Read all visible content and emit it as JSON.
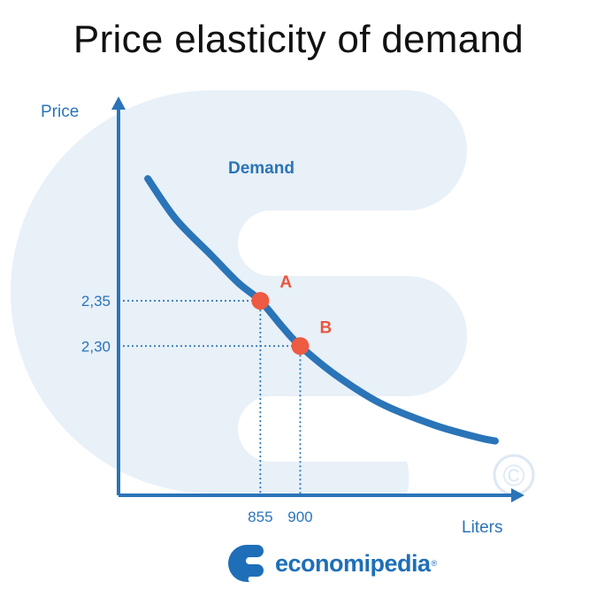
{
  "title": "Price elasticity of demand",
  "brand": {
    "name": "economipedia",
    "reg_mark": "®"
  },
  "watermark": {
    "copyright_symbol": "©"
  },
  "colors": {
    "axis": "#2a74b8",
    "curve": "#2a74b8",
    "point": "#ee5a42",
    "point_label": "#e8563f",
    "watermark": "#e8f0f8",
    "title": "#111111"
  },
  "chart_data": {
    "type": "line",
    "title": "Price elasticity of demand",
    "xlabel": "Liters",
    "ylabel": "Price",
    "x_ticks": [
      "855",
      "900"
    ],
    "y_ticks": [
      "2,35",
      "2,30"
    ],
    "series": [
      {
        "name": "Demand",
        "x": [
          728,
          760,
          800,
          830,
          855,
          880,
          900,
          940,
          990,
          1050,
          1100,
          1120
        ],
        "y": [
          2.485,
          2.44,
          2.4,
          2.37,
          2.35,
          2.321,
          2.3,
          2.268,
          2.237,
          2.213,
          2.199,
          2.195
        ]
      }
    ],
    "points": [
      {
        "label": "A",
        "x": 855,
        "y": 2.35
      },
      {
        "label": "B",
        "x": 900,
        "y": 2.3
      }
    ],
    "xlim": [
      695,
      1150
    ],
    "ylim": [
      2.135,
      2.575
    ],
    "grid": false,
    "legend": "none"
  }
}
